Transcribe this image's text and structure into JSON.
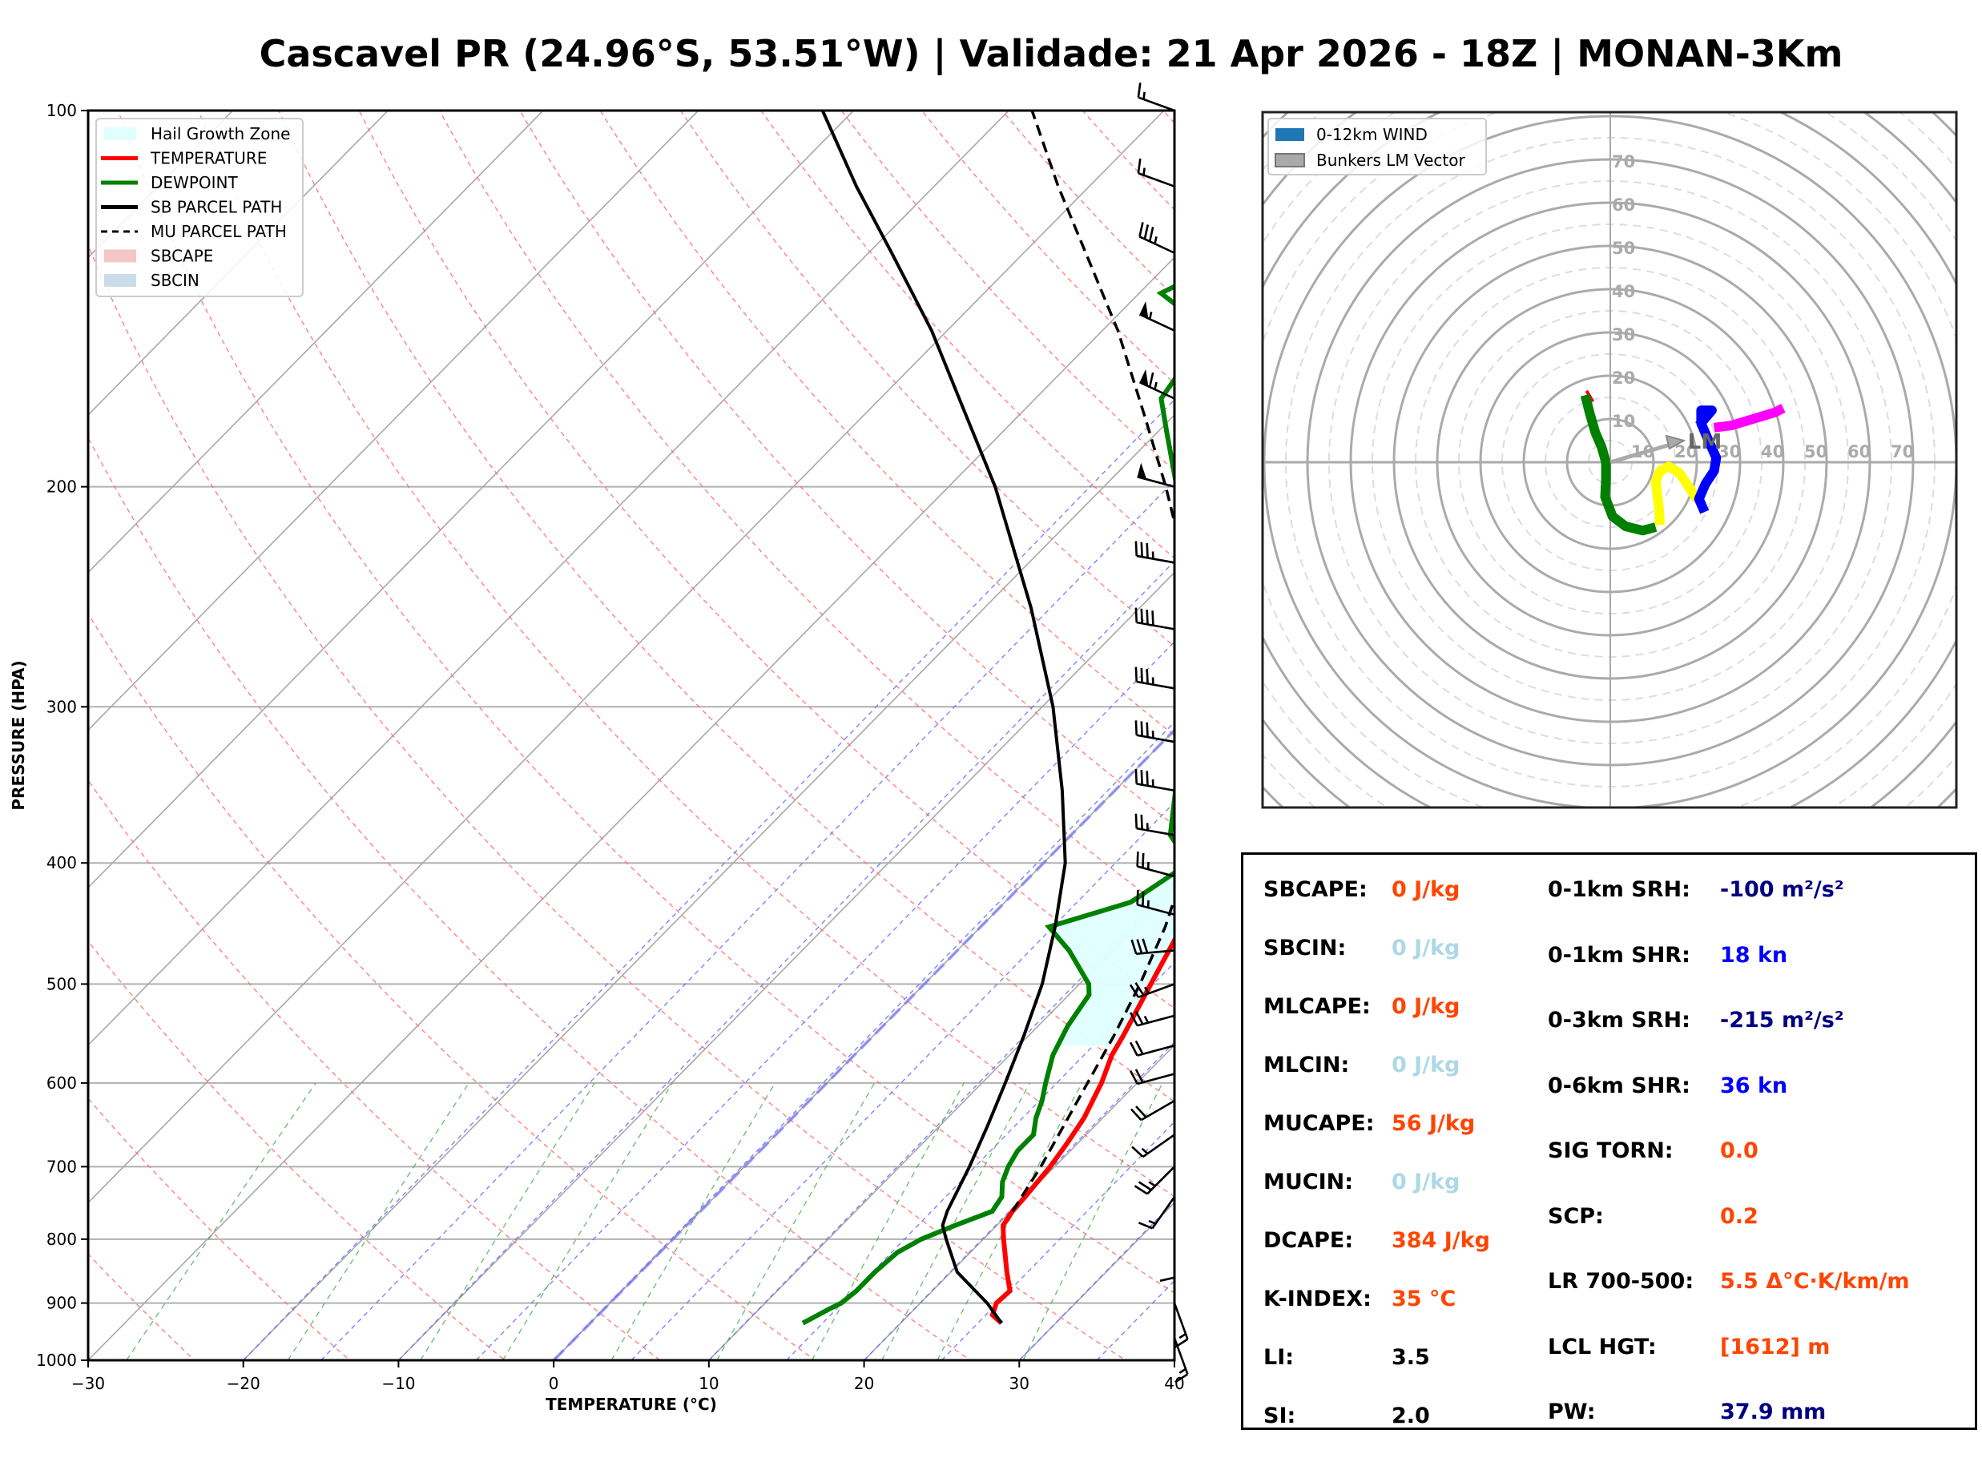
{
  "title": "Cascavel PR (24.96°S, 53.51°W) | Validade: 21 Apr 2026 - 18Z | MONAN-3Km",
  "chart_data": [
    {
      "type": "line",
      "name": "skew-t",
      "xlabel": "TEMPERATURE (°C)",
      "ylabel": "PRESSURE (HPA)",
      "xlim": [
        -30,
        40
      ],
      "ylim": [
        1000,
        100
      ],
      "x_ticks": [
        -30,
        -20,
        -10,
        0,
        10,
        20,
        30,
        40
      ],
      "x_tick_labels": [
        "−30",
        "−20",
        "−10",
        "0",
        "10",
        "20",
        "30",
        "40"
      ],
      "y_ticks": [
        1000,
        900,
        800,
        700,
        600,
        500,
        400,
        300,
        200,
        100
      ],
      "y_tick_labels": [
        "1000",
        "900",
        "800",
        "700",
        "600",
        "500",
        "400",
        "300",
        "200",
        "100"
      ],
      "y_scale": "log",
      "grid": true,
      "legend_position": "top-left",
      "legend": [
        {
          "label": "Hail Growth Zone",
          "color": "#e0ffff",
          "kind": "patch"
        },
        {
          "label": "TEMPERATURE",
          "color": "#ff0000",
          "kind": "line"
        },
        {
          "label": "DEWPOINT",
          "color": "#008000",
          "kind": "line"
        },
        {
          "label": "SB PARCEL PATH",
          "color": "#000000",
          "kind": "line"
        },
        {
          "label": "MU PARCEL PATH",
          "color": "#000000",
          "kind": "dashed"
        },
        {
          "label": "SBCAPE",
          "color": "#f4c7c7",
          "kind": "patch"
        },
        {
          "label": "SBCIN",
          "color": "#c9dcea",
          "kind": "patch"
        }
      ],
      "series": [
        {
          "name": "TEMPERATURE",
          "color": "#ff0000",
          "points": [
            [
              934,
              26.5
            ],
            [
              920,
              25.4
            ],
            [
              900,
              24.9
            ],
            [
              880,
              25.0
            ],
            [
              850,
              23.6
            ],
            [
              800,
              21.3
            ],
            [
              780,
              20.4
            ],
            [
              760,
              20.1
            ],
            [
              740,
              20.0
            ],
            [
              700,
              19.7
            ],
            [
              670,
              19.3
            ],
            [
              640,
              18.8
            ],
            [
              600,
              17.7
            ],
            [
              570,
              16.6
            ],
            [
              550,
              16.1
            ],
            [
              500,
              14.6
            ],
            [
              460,
              13.3
            ],
            [
              440,
              13.0
            ],
            [
              420,
              13.2
            ],
            [
              400,
              13.6
            ],
            [
              350,
              11.3
            ],
            [
              330,
              10.0
            ],
            [
              300,
              8.1
            ],
            [
              250,
              4.3
            ],
            [
              220,
              1.0
            ],
            [
              200,
              -1.4
            ],
            [
              190,
              -1.3
            ],
            [
              170,
              -1.0
            ],
            [
              160,
              -0.3
            ],
            [
              150,
              2.1
            ],
            [
              130,
              2.3
            ],
            [
              115,
              1.7
            ],
            [
              100,
              3.0
            ]
          ]
        },
        {
          "name": "DEWPOINT",
          "color": "#008000",
          "points": [
            [
              934,
              13.7
            ],
            [
              910,
              14.5
            ],
            [
              900,
              14.9
            ],
            [
              880,
              15.1
            ],
            [
              850,
              15.1
            ],
            [
              820,
              15.3
            ],
            [
              800,
              16.0
            ],
            [
              780,
              17.3
            ],
            [
              760,
              18.8
            ],
            [
              740,
              18.5
            ],
            [
              720,
              17.6
            ],
            [
              700,
              17.0
            ],
            [
              680,
              16.6
            ],
            [
              660,
              16.6
            ],
            [
              640,
              15.7
            ],
            [
              620,
              15.0
            ],
            [
              600,
              14.1
            ],
            [
              570,
              12.8
            ],
            [
              540,
              11.9
            ],
            [
              510,
              11.3
            ],
            [
              500,
              10.6
            ],
            [
              470,
              7.2
            ],
            [
              450,
              4.4
            ],
            [
              430,
              8.1
            ],
            [
              400,
              9.4
            ],
            [
              380,
              6.4
            ],
            [
              350,
              3.9
            ],
            [
              330,
              2.0
            ],
            [
              300,
              -1.0
            ],
            [
              270,
              -4.4
            ],
            [
              240,
              -8.8
            ],
            [
              220,
              -11.6
            ],
            [
              200,
              -15.3
            ],
            [
              180,
              -19.6
            ],
            [
              170,
              -21.9
            ],
            [
              160,
              -22.5
            ],
            [
              150,
              -23.1
            ],
            [
              140,
              -28.6
            ],
            [
              130,
              -26.0
            ],
            [
              115,
              -25.3
            ],
            [
              100,
              -23.9
            ]
          ]
        },
        {
          "name": "SB PARCEL PATH",
          "color": "#000000",
          "points": [
            [
              934,
              26.5
            ],
            [
              900,
              24.3
            ],
            [
              850,
              20.4
            ],
            [
              800,
              17.6
            ],
            [
              780,
              16.5
            ],
            [
              760,
              15.9
            ],
            [
              700,
              14.5
            ],
            [
              650,
              13.1
            ],
            [
              600,
              11.5
            ],
            [
              550,
              9.7
            ],
            [
              500,
              7.6
            ],
            [
              450,
              4.8
            ],
            [
              400,
              1.4
            ],
            [
              350,
              -3.4
            ],
            [
              300,
              -9.3
            ],
            [
              250,
              -17.0
            ],
            [
              200,
              -27.0
            ],
            [
              175,
              -33.5
            ],
            [
              150,
              -41.0
            ],
            [
              130,
              -48.5
            ],
            [
              115,
              -55.0
            ],
            [
              100,
              -62.0
            ]
          ]
        },
        {
          "name": "MU PARCEL PATH",
          "color": "#000000",
          "dashed": true,
          "points": [
            [
              760,
              20.1
            ],
            [
              700,
              19.1
            ],
            [
              650,
              18.0
            ],
            [
              600,
              16.8
            ],
            [
              550,
              15.5
            ],
            [
              500,
              13.9
            ],
            [
              450,
              11.9
            ],
            [
              400,
              9.2
            ],
            [
              350,
              5.4
            ],
            [
              300,
              0.6
            ],
            [
              250,
              -6.4
            ],
            [
              200,
              -16.0
            ],
            [
              175,
              -22.0
            ],
            [
              150,
              -29.0
            ],
            [
              130,
              -36.0
            ],
            [
              115,
              -42.0
            ],
            [
              100,
              -48.5
            ]
          ]
        }
      ],
      "hail_growth_zone": {
        "p_top": 400,
        "p_bottom": 560,
        "color": "#e0ffff"
      },
      "wind_barbs": [
        {
          "p": 100,
          "dir_deg": 290,
          "spd_kt": 15
        },
        {
          "p": 115,
          "dir_deg": 290,
          "spd_kt": 15
        },
        {
          "p": 130,
          "dir_deg": 295,
          "spd_kt": 35
        },
        {
          "p": 150,
          "dir_deg": 295,
          "spd_kt": 55
        },
        {
          "p": 170,
          "dir_deg": 295,
          "spd_kt": 65
        },
        {
          "p": 200,
          "dir_deg": 285,
          "spd_kt": 50
        },
        {
          "p": 230,
          "dir_deg": 280,
          "spd_kt": 35
        },
        {
          "p": 260,
          "dir_deg": 280,
          "spd_kt": 40
        },
        {
          "p": 290,
          "dir_deg": 280,
          "spd_kt": 35
        },
        {
          "p": 320,
          "dir_deg": 280,
          "spd_kt": 35
        },
        {
          "p": 350,
          "dir_deg": 280,
          "spd_kt": 35
        },
        {
          "p": 380,
          "dir_deg": 280,
          "spd_kt": 25
        },
        {
          "p": 410,
          "dir_deg": 285,
          "spd_kt": 25
        },
        {
          "p": 440,
          "dir_deg": 285,
          "spd_kt": 25
        },
        {
          "p": 470,
          "dir_deg": 265,
          "spd_kt": 30
        },
        {
          "p": 500,
          "dir_deg": 250,
          "spd_kt": 25
        },
        {
          "p": 530,
          "dir_deg": 255,
          "spd_kt": 25
        },
        {
          "p": 560,
          "dir_deg": 255,
          "spd_kt": 20
        },
        {
          "p": 590,
          "dir_deg": 255,
          "spd_kt": 20
        },
        {
          "p": 620,
          "dir_deg": 240,
          "spd_kt": 20
        },
        {
          "p": 660,
          "dir_deg": 235,
          "spd_kt": 15
        },
        {
          "p": 700,
          "dir_deg": 225,
          "spd_kt": 25
        },
        {
          "p": 740,
          "dir_deg": 215,
          "spd_kt": 15
        },
        {
          "p": 800,
          "dir_deg": 180,
          "spd_kt": 10
        },
        {
          "p": 900,
          "dir_deg": 160,
          "spd_kt": 15
        },
        {
          "p": 960,
          "dir_deg": 160,
          "spd_kt": 15
        }
      ],
      "background_lines": [
        "isotherms",
        "dry adiabats",
        "moist adiabats",
        "mixing ratio",
        "isobars"
      ],
      "freezing_level_isotherm": 0
    },
    {
      "type": "line",
      "name": "hodograph",
      "axis_labels": [
        "10",
        "20",
        "30",
        "40",
        "50",
        "60",
        "70"
      ],
      "ring_step_kt": 10,
      "max_ring_kt": 80,
      "legend_position": "top-left",
      "legend": [
        {
          "label": "0-12km WIND",
          "color": "#1f77b4"
        },
        {
          "label": "Bunkers LM Vector",
          "color": "#aaaaaa"
        }
      ],
      "segments": [
        {
          "name": "red",
          "color": "#ff0000",
          "uv": [
            [
              -5.5,
              16.5
            ],
            [
              -4.0,
              14.0
            ]
          ]
        },
        {
          "name": "green",
          "color": "#008000",
          "uv": [
            [
              -5.8,
              15.5
            ],
            [
              -4.8,
              11.5
            ],
            [
              -3.5,
              7.0
            ],
            [
              -2.0,
              3.5
            ],
            [
              -1.0,
              0
            ],
            [
              -1.0,
              -4
            ],
            [
              -1.2,
              -8
            ],
            [
              0.5,
              -12.5
            ],
            [
              3.5,
              -14.8
            ],
            [
              7.5,
              -15.8
            ],
            [
              10.5,
              -15.0
            ]
          ]
        },
        {
          "name": "yellow",
          "color": "#ffff00",
          "uv": [
            [
              11.5,
              -14.5
            ],
            [
              11.3,
              -11.0
            ],
            [
              10.8,
              -7.0
            ],
            [
              10.5,
              -4.5
            ],
            [
              11.5,
              -2.0
            ],
            [
              13.5,
              -1.0
            ],
            [
              16.0,
              -2.5
            ],
            [
              18.0,
              -5.5
            ],
            [
              20.0,
              -8.5
            ]
          ]
        },
        {
          "name": "blue",
          "color": "#0000ff",
          "uv": [
            [
              21.8,
              -11.5
            ],
            [
              20.5,
              -8.5
            ],
            [
              22.0,
              -5.0
            ],
            [
              24.0,
              -2.0
            ],
            [
              24.5,
              1.0
            ],
            [
              22.5,
              5.5
            ],
            [
              21.0,
              9.0
            ],
            [
              21.0,
              12.0
            ],
            [
              23.5,
              12.0
            ],
            [
              20.5,
              8.5
            ]
          ]
        },
        {
          "name": "magenta",
          "color": "#ff00ff",
          "uv": [
            [
              24.0,
              8.0
            ],
            [
              28.0,
              8.5
            ],
            [
              33.0,
              10.0
            ],
            [
              38.0,
              11.5
            ],
            [
              40.0,
              12.5
            ]
          ]
        }
      ],
      "bunkers_lm": {
        "u": 17.0,
        "v": 5.0,
        "label": "LM"
      }
    }
  ],
  "stats": {
    "left": [
      {
        "label": "SBCAPE:",
        "value": "0 J/kg",
        "color": "#ff4500"
      },
      {
        "label": "SBCIN:",
        "value": "0 J/kg",
        "color": "#add8e6"
      },
      {
        "label": "MLCAPE:",
        "value": "0 J/kg",
        "color": "#ff4500"
      },
      {
        "label": "MLCIN:",
        "value": "0 J/kg",
        "color": "#add8e6"
      },
      {
        "label": "MUCAPE:",
        "value": "56 J/kg",
        "color": "#ff4500"
      },
      {
        "label": "MUCIN:",
        "value": "0 J/kg",
        "color": "#add8e6"
      },
      {
        "label": "DCAPE:",
        "value": "384 J/kg",
        "color": "#ff4500"
      },
      {
        "label": "K-INDEX:",
        "value": "35 °C",
        "color": "#ff4500"
      },
      {
        "label": "LI:",
        "value": "3.5",
        "color": "#000000"
      },
      {
        "label": "SI:",
        "value": "2.0",
        "color": "#000000"
      }
    ],
    "right": [
      {
        "label": "0-1km SRH:",
        "value": "-100 m²/s²",
        "color": "#000080"
      },
      {
        "label": "0-1km SHR:",
        "value": "18 kn",
        "color": "#0000ff"
      },
      {
        "label": "0-3km SRH:",
        "value": "-215 m²/s²",
        "color": "#000080"
      },
      {
        "label": "0-6km SHR:",
        "value": "36 kn",
        "color": "#0000ff"
      },
      {
        "label": "SIG TORN:",
        "value": "0.0",
        "color": "#ff4500"
      },
      {
        "label": "SCP:",
        "value": "0.2",
        "color": "#ff4500"
      },
      {
        "label": "LR 700-500:",
        "value": "5.5 Δ°C·K/km/m",
        "color": "#ff4500"
      },
      {
        "label": "LCL HGT:",
        "value": "[1612] m",
        "color": "#ff4500"
      },
      {
        "label": "PW:",
        "value": "37.9 mm",
        "color": "#000080"
      }
    ]
  }
}
